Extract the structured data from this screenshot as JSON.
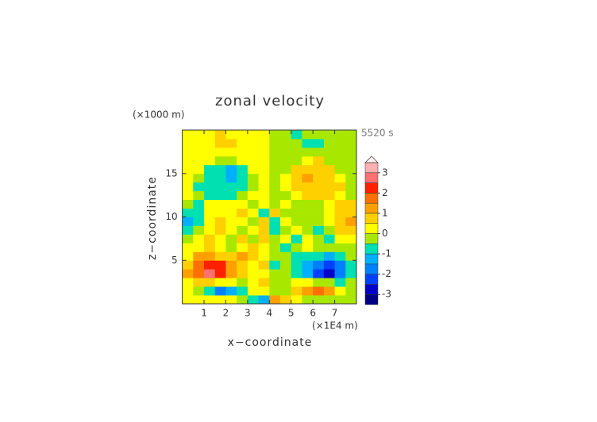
{
  "chart_data": {
    "type": "heatmap",
    "title": "zonal velocity",
    "x_label": "x−coordinate",
    "y_label": "z−coordinate",
    "x_unit": "(×1E4 m)",
    "y_unit": "(×1000 m)",
    "time_label": "5520 s",
    "xlim": [
      0,
      8
    ],
    "ylim": [
      0,
      20
    ],
    "xticks": [
      1,
      2,
      3,
      4,
      5,
      6,
      7
    ],
    "yticks": [
      5,
      10,
      15
    ],
    "x": [
      0.25,
      0.75,
      1.25,
      1.75,
      2.25,
      2.75,
      3.25,
      3.75,
      4.25,
      4.75,
      5.25,
      5.75,
      6.25,
      6.75,
      7.25,
      7.75
    ],
    "y": [
      0.5,
      1.5,
      2.5,
      3.5,
      4.5,
      5.5,
      6.5,
      7.5,
      8.5,
      9.5,
      10.5,
      11.5,
      12.5,
      13.5,
      14.5,
      15.5,
      16.5,
      17.5,
      18.5,
      19.5
    ],
    "z": [
      [
        0.2,
        0.3,
        0.2,
        0.1,
        0.1,
        -0.3,
        -0.8,
        -1.2,
        1.2,
        0.6,
        0.2,
        -0.1,
        -0.2,
        -0.3,
        -0.2,
        -0.2
      ],
      [
        0.1,
        -0.4,
        -1.0,
        -1.6,
        -1.4,
        -0.6,
        0.2,
        0.3,
        -0.3,
        -0.2,
        0.6,
        1.4,
        1.6,
        1.0,
        0.4,
        -0.1
      ],
      [
        0.4,
        0.6,
        0.5,
        0.3,
        0.0,
        -0.4,
        0.2,
        0.5,
        -0.5,
        -0.2,
        0.4,
        0.0,
        -0.3,
        -0.5,
        -0.6,
        -0.4
      ],
      [
        1.0,
        1.8,
        2.6,
        2.4,
        1.4,
        0.6,
        0.3,
        0.4,
        -0.4,
        -0.3,
        -0.6,
        -1.4,
        -2.4,
        -2.6,
        -1.8,
        -1.0
      ],
      [
        0.8,
        1.6,
        2.2,
        2.0,
        1.2,
        0.7,
        0.2,
        0.6,
        -0.6,
        -0.2,
        -0.7,
        -1.2,
        -2.0,
        -2.2,
        -1.6,
        -0.8
      ],
      [
        0.4,
        1.0,
        1.2,
        0.8,
        0.6,
        1.0,
        0.5,
        0.2,
        -0.2,
        -0.5,
        -1.0,
        -0.6,
        -0.8,
        -1.2,
        -1.0,
        -0.4
      ],
      [
        0.2,
        0.4,
        0.5,
        0.2,
        -0.4,
        0.4,
        0.8,
        0.3,
        -0.3,
        -0.8,
        -0.4,
        0.4,
        -0.2,
        -0.5,
        -0.4,
        -0.2
      ],
      [
        -0.3,
        0.2,
        0.6,
        0.3,
        -0.2,
        0.6,
        -0.3,
        0.5,
        -0.5,
        0.3,
        -0.6,
        0.2,
        -0.3,
        -0.6,
        0.4,
        0.3
      ],
      [
        -0.8,
        -0.3,
        0.3,
        0.6,
        0.2,
        -0.3,
        0.4,
        0.6,
        -0.6,
        -0.4,
        0.3,
        -0.2,
        -0.6,
        -0.3,
        0.6,
        0.9
      ],
      [
        -1.1,
        -0.7,
        0.2,
        0.5,
        0.3,
        0.1,
        -0.4,
        0.8,
        -0.8,
        0.4,
        -0.1,
        -0.3,
        -0.5,
        0.2,
        0.8,
        1.1
      ],
      [
        -0.9,
        -0.9,
        0.1,
        0.4,
        0.3,
        0.5,
        0.2,
        -0.6,
        0.6,
        -0.2,
        -0.5,
        -0.3,
        -0.4,
        0.1,
        0.9,
        0.9
      ],
      [
        -0.5,
        -0.6,
        0.2,
        0.3,
        0.3,
        0.2,
        -0.3,
        0.3,
        -0.3,
        0.3,
        -0.2,
        -0.3,
        -0.3,
        0.3,
        0.6,
        0.5
      ],
      [
        0.2,
        -0.3,
        -0.6,
        -0.7,
        -0.6,
        -0.2,
        0.1,
        0.2,
        -0.2,
        -0.1,
        0.2,
        0.6,
        0.7,
        0.6,
        0.3,
        -0.2
      ],
      [
        0.3,
        -0.6,
        -0.8,
        -0.9,
        -0.8,
        -0.6,
        -0.2,
        0.2,
        -0.2,
        0.2,
        0.6,
        0.8,
        0.9,
        0.8,
        0.6,
        -0.3
      ],
      [
        0.3,
        -0.4,
        -0.8,
        -0.9,
        -1.3,
        -0.7,
        -0.2,
        0.3,
        -0.3,
        0.2,
        0.7,
        1.0,
        0.9,
        0.8,
        0.4,
        -0.3
      ],
      [
        0.3,
        0.2,
        -0.6,
        -0.8,
        -1.1,
        -0.6,
        0.2,
        0.3,
        -0.3,
        -0.2,
        0.6,
        0.9,
        0.8,
        0.6,
        -0.2,
        -0.3
      ],
      [
        0.3,
        0.3,
        0.2,
        -0.5,
        -0.4,
        0.2,
        0.3,
        0.3,
        -0.3,
        -0.3,
        -0.2,
        0.4,
        0.5,
        -0.2,
        -0.3,
        -0.3
      ],
      [
        0.2,
        0.3,
        0.3,
        0.2,
        0.3,
        0.3,
        0.2,
        0.2,
        -0.2,
        -0.2,
        -0.3,
        -0.3,
        -0.2,
        -0.3,
        -0.3,
        -0.2
      ],
      [
        0.2,
        0.3,
        0.4,
        0.6,
        0.7,
        0.3,
        0.2,
        0.2,
        -0.2,
        -0.2,
        -0.4,
        -0.7,
        -0.6,
        -0.3,
        -0.3,
        -0.2
      ],
      [
        0.2,
        0.2,
        0.3,
        0.7,
        0.4,
        0.2,
        0.2,
        0.2,
        -0.2,
        -0.3,
        -0.7,
        -0.4,
        -0.3,
        -0.2,
        -0.2,
        -0.2
      ]
    ],
    "colorbar": {
      "levels": [
        -3.5,
        -3,
        -2.5,
        -2,
        -1.5,
        -1,
        -0.5,
        0,
        0.5,
        1,
        1.5,
        2,
        2.5,
        3,
        3.5
      ],
      "colors": [
        "#000080",
        "#0000c8",
        "#0040ff",
        "#0080ff",
        "#00b0ff",
        "#00e0b0",
        "#a8e800",
        "#ffff00",
        "#ffd000",
        "#ffa000",
        "#ff7000",
        "#ff2000",
        "#ff7070",
        "#ffb0b0"
      ],
      "extend_color": "#fff0f0",
      "ticks": [
        -3,
        -2,
        -1,
        0,
        1,
        2,
        3
      ]
    }
  }
}
